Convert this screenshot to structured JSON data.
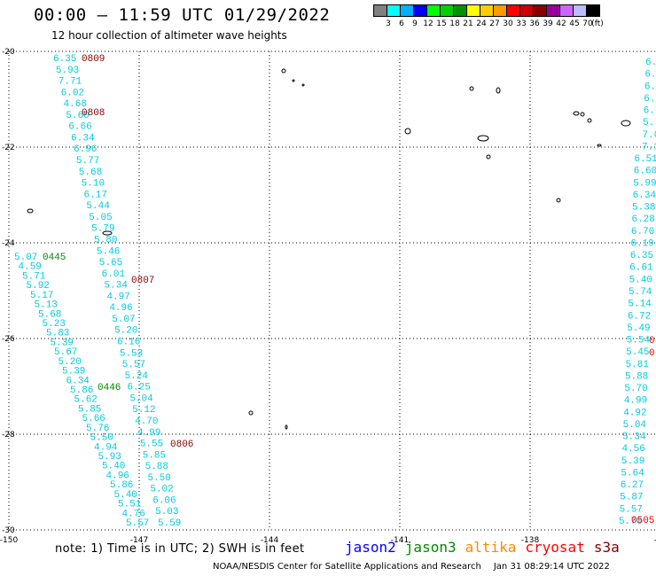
{
  "header": {
    "title": "00:00 – 11:59 UTC 01/29/2022",
    "subtitle": "12 hour collection of altimeter wave heights"
  },
  "colorbar": {
    "colors": [
      "#808080",
      "#00ffff",
      "#00b0ff",
      "#0000ff",
      "#00ff00",
      "#00d000",
      "#009000",
      "#ffff00",
      "#ffcc00",
      "#ff9900",
      "#ff0000",
      "#cc0000",
      "#880000",
      "#990099",
      "#cc66ff",
      "#bbbbff",
      "#000000"
    ],
    "labels": [
      "3",
      "6",
      "9",
      "12",
      "15",
      "18",
      "21",
      "24",
      "27",
      "30",
      "33",
      "36",
      "39",
      "42",
      "45",
      "70"
    ],
    "unit": "(ft)"
  },
  "axes": {
    "lat_labels": [
      "-20",
      "-22",
      "-24",
      "-26",
      "-28",
      "-30"
    ],
    "lon_labels": [
      "-150",
      "-147",
      "-144",
      "-141",
      "-138",
      "-13"
    ]
  },
  "footer": {
    "note": "note: 1) Time is in UTC; 2) SWH is in feet",
    "legend": [
      {
        "name": "jason2",
        "color": "#0000ff"
      },
      {
        "name": "jason3",
        "color": "#008800"
      },
      {
        "name": "altika",
        "color": "#ff8800"
      },
      {
        "name": "cryosat",
        "color": "#ff0000"
      },
      {
        "name": "s3a",
        "color": "#880000"
      }
    ],
    "credit": "NOAA/NESDIS Center for Satellite Applications and Research",
    "timestamp": "Jan 31 08:29:14 UTC 2022"
  },
  "track_colors": {
    "cyan": "#00ccdd",
    "jason3": "#008800",
    "s3a": "#880000",
    "cryosat": "#ff0000"
  },
  "time_labels": [
    {
      "text": "0809",
      "color": "s3a"
    },
    {
      "text": "0808",
      "color": "s3a"
    },
    {
      "text": "0807",
      "color": "s3a"
    },
    {
      "text": "0806",
      "color": "s3a"
    },
    {
      "text": "0445",
      "color": "jason3"
    },
    {
      "text": "0446",
      "color": "jason3"
    },
    {
      "text": "0505",
      "color": "cryosat"
    },
    {
      "text": "0",
      "color": "cryosat"
    },
    {
      "text": "0",
      "color": "cryosat"
    }
  ],
  "tracks": {
    "s3a_a": [
      "6.35",
      "5.93",
      "7.71",
      "6.02",
      "4.68",
      "5.60",
      "6.66",
      "6.34",
      "6.96",
      "5.77",
      "5.68",
      "5.10",
      "6.17",
      "5.44",
      "5.05",
      "5.79",
      "5.80",
      "5.46",
      "5.65",
      "6.01",
      "5.34",
      "4.97",
      "4.96",
      "5.07",
      "5.20",
      "6.16",
      "5.53",
      "5.57",
      "5.24",
      "6.25",
      "5.04",
      "5.12",
      "4.70",
      "4.99",
      "5.55",
      "5.85",
      "5.88",
      "5.50",
      "5.02",
      "6.06",
      "5.03",
      "5.59"
    ],
    "jason3": [
      "5.07",
      "4.59",
      "5.71",
      "5.92",
      "5.17",
      "5.13",
      "5.68",
      "5.23",
      "5.83",
      "5.39",
      "5.67",
      "5.20",
      "5.39",
      "6.34",
      "5.86",
      "5.62",
      "5.85",
      "5.66",
      "5.76",
      "5.50",
      "4.94",
      "5.93",
      "5.40",
      "4.96",
      "5.86",
      "5.40",
      "5.51",
      "4.76",
      "5.57"
    ],
    "cryosat": [
      "6.5",
      "6.",
      "6.",
      "6.",
      "6.",
      "5.",
      "7.0",
      "7.1",
      "6.51",
      "6.60",
      "5.99",
      "6.34",
      "5.38",
      "6.28",
      "6.70",
      "6.19",
      "6.35",
      "6.61",
      "5.40",
      "5.74",
      "5.14",
      "6.72",
      "5.49",
      "5.54",
      "5.45",
      "5.81",
      "5.88",
      "5.70",
      "4.99",
      "4.92",
      "5.04",
      "5.34",
      "4.56",
      "5.39",
      "5.64",
      "6.27",
      "5.87",
      "5.57",
      "5.70"
    ]
  }
}
